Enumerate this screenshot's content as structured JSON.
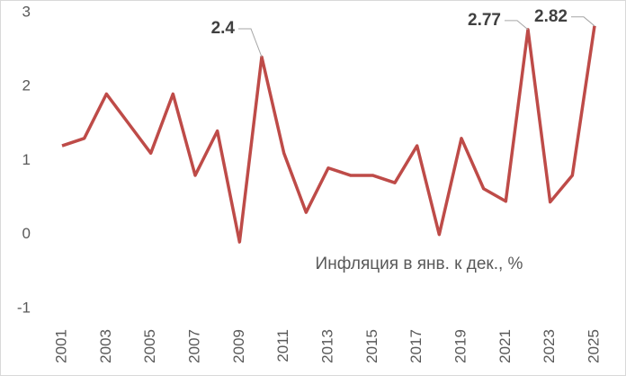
{
  "chart_data": {
    "type": "line",
    "x": [
      2001,
      2002,
      2003,
      2004,
      2005,
      2006,
      2007,
      2008,
      2009,
      2010,
      2011,
      2012,
      2013,
      2014,
      2015,
      2016,
      2017,
      2018,
      2019,
      2020,
      2021,
      2022,
      2023,
      2024,
      2025
    ],
    "series": [
      {
        "name": "Инфляция в янв. к дек., %",
        "color": "#be4b48",
        "values": [
          1.2,
          1.3,
          1.9,
          1.5,
          1.1,
          1.9,
          0.8,
          1.4,
          -0.1,
          2.4,
          1.1,
          0.3,
          0.9,
          0.8,
          0.8,
          0.7,
          1.2,
          0.0,
          1.3,
          0.62,
          0.45,
          2.77,
          0.44,
          0.8,
          2.82
        ],
        "value_labels": [
          null,
          null,
          null,
          null,
          null,
          null,
          null,
          null,
          null,
          "2.4",
          null,
          null,
          null,
          null,
          null,
          null,
          null,
          null,
          null,
          null,
          null,
          "2.77",
          null,
          null,
          "2.82"
        ]
      }
    ],
    "xlim": [
      2001,
      2025
    ],
    "xticks": [
      2001,
      2003,
      2005,
      2007,
      2009,
      2011,
      2013,
      2015,
      2017,
      2019,
      2021,
      2023,
      2025
    ],
    "ylim": [
      -1,
      3
    ],
    "yticks": [
      -1,
      0,
      1,
      2,
      3
    ],
    "grid": false
  }
}
